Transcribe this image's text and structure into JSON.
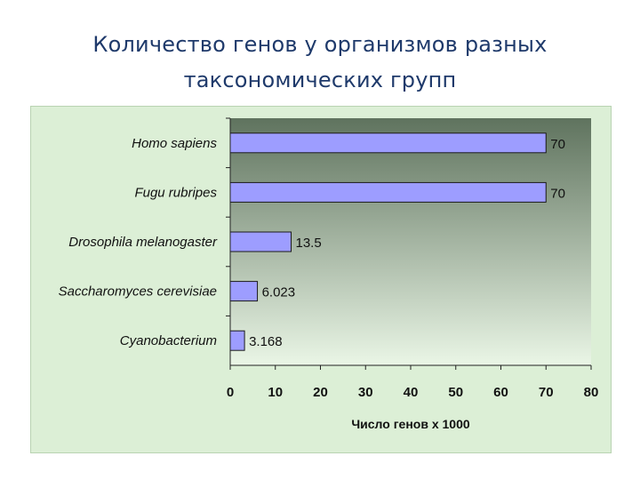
{
  "slide": {
    "title_line1": "Количество генов у организмов разных",
    "title_line2": "таксономических групп"
  },
  "chart_data": {
    "type": "bar",
    "orientation": "horizontal",
    "categories": [
      "Homo sapiens",
      "Fugu rubripes",
      "Drosophila melanogaster",
      "Saccharomyces cerevisiae",
      "Cyanobacterium"
    ],
    "values": [
      70,
      70,
      13.5,
      6.023,
      3.168
    ],
    "value_labels": [
      "70",
      "70",
      "13.5",
      "6.023",
      "3.168"
    ],
    "xlabel": "Число генов x 1000",
    "xlim": [
      0,
      80
    ],
    "xticks": [
      "0",
      "10",
      "20",
      "30",
      "40",
      "50",
      "60",
      "70",
      "80"
    ],
    "grid": false,
    "legend": "none",
    "colors": {
      "bar_fill": "#9d9dff",
      "bar_stroke": "#1a1a1a",
      "plot_gradient_top": "#5f735e",
      "plot_gradient_bottom": "#eaf6e6",
      "chart_background": "#dcefd6"
    }
  }
}
